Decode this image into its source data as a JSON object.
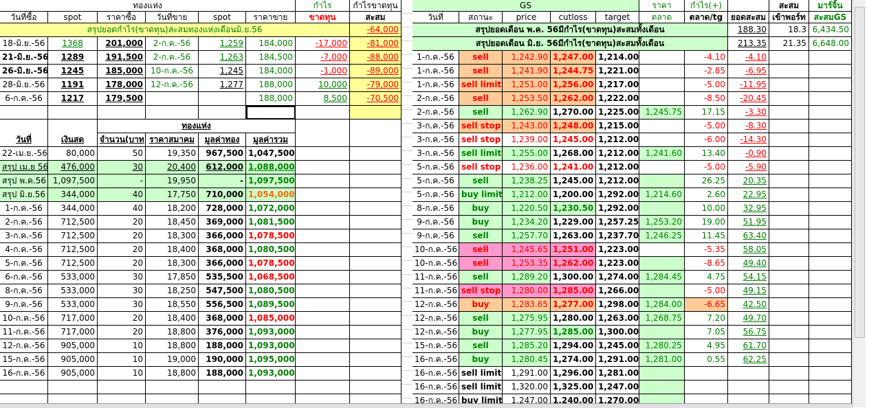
{
  "colors": {
    "green": "#008000",
    "red": "#ff0000",
    "yellow": "#ffff99",
    "lightgreen": "#ccffcc",
    "orange": "#ffcc99",
    "pink": "#ff99cc"
  },
  "left_top": {
    "group_header": "ทองแห่ง",
    "profit_header_top": "กำไร",
    "profit_header_bottom": "ขาดทุน",
    "cum_header_top": "กำไรขาดทุน",
    "cum_header_bottom": "สะสม",
    "columns": [
      "วันที่ซื้อ",
      "spot",
      "ราคาซื้อ",
      "วันที่ขาย",
      "spot",
      "ราคาขาย"
    ],
    "summary_label": "สรุปยอดกำไร(ขาดทุน)สะสมทองแห่งเดือนมิ.ย.56",
    "summary_value": "-64,000",
    "rows": [
      [
        "18-มิ.ย.-56",
        "1368",
        "201,000",
        "2-ก.ค.-56",
        "1,259",
        "184,000",
        "-17,000",
        "-81,000"
      ],
      [
        "21-มิ.ย.-56",
        "1289",
        "191,500",
        "2-ก.ค.-56",
        "1,263",
        "184,500",
        "-7,000",
        "-88,000"
      ],
      [
        "26-มิ.ย.-56",
        "1245",
        "185,000",
        "10-ก.ค.-56",
        "1,245",
        "184,000",
        "-1,000",
        "-89,000"
      ],
      [
        "28-มิ.ย.-56",
        "1191",
        "178,000",
        "12-ก.ค.-56",
        "1,277",
        "188,000",
        "10,000",
        "-79,000"
      ],
      [
        "6-ก.ค.-56",
        "1217",
        "179,500",
        "",
        "",
        "188,000",
        "8,500",
        "-70,500"
      ]
    ]
  },
  "left_bottom": {
    "group_header": "ทองแห่ง",
    "columns": [
      "วันที่",
      "เงินสด",
      "จำนวน(บาท)",
      "ราคาสมาคม",
      "มูลค่าทอง",
      "มูลค่ารวม"
    ],
    "rows": [
      {
        "v": [
          "22-เม.ย.-56",
          "80,000",
          "50",
          "19,350",
          "967,500",
          "1,047,500"
        ],
        "tc": ""
      },
      {
        "v": [
          "สรุป เม.ย 56",
          "476,000",
          "30",
          "20,400",
          "612,000",
          "1,088,000"
        ],
        "tc": "g",
        "sum": true,
        "u": true
      },
      {
        "v": [
          "สรุป พ.ค.56",
          "1,097,500",
          "-",
          "19,950",
          "-",
          "1,097,500"
        ],
        "tc": "g",
        "sum": true
      },
      {
        "v": [
          "สรุป มิ.ย.56",
          "344,000",
          "40",
          "17,750",
          "710,000",
          "1,054,000"
        ],
        "tc": "or",
        "sum": true
      },
      {
        "v": [
          "1-ก.ค.-56",
          "344,000",
          "40",
          "18,200",
          "728,000",
          "1,072,000"
        ],
        "tc": "g"
      },
      {
        "v": [
          "2-ก.ค.-56",
          "712,500",
          "20",
          "18,450",
          "369,000",
          "1,081,500"
        ],
        "tc": "g"
      },
      {
        "v": [
          "3-ก.ค.-56",
          "712,500",
          "20",
          "18,300",
          "366,000",
          "1,078,500"
        ],
        "tc": "rd"
      },
      {
        "v": [
          "4-ก.ค.-56",
          "712,500",
          "20",
          "18,400",
          "368,000",
          "1,080,500"
        ],
        "tc": "g"
      },
      {
        "v": [
          "5-ก.ค.-56",
          "712,500",
          "20",
          "18,300",
          "366,000",
          "1,078,500"
        ],
        "tc": "rd"
      },
      {
        "v": [
          "6-ก.ค.-56",
          "533,000",
          "30",
          "17,850",
          "535,500",
          "1,068,500"
        ],
        "tc": "rd"
      },
      {
        "v": [
          "8-ก.ค.-56",
          "533,000",
          "30",
          "18,250",
          "547,500",
          "1,080,500"
        ],
        "tc": "g"
      },
      {
        "v": [
          "9-ก.ค.-56",
          "533,000",
          "30",
          "18,550",
          "556,500",
          "1,089,500"
        ],
        "tc": "g"
      },
      {
        "v": [
          "10-ก.ค.-56",
          "717,000",
          "20",
          "18,400",
          "368,000",
          "1,085,000"
        ],
        "tc": "rd"
      },
      {
        "v": [
          "11-ก.ค.-56",
          "717,000",
          "20",
          "18,800",
          "376,000",
          "1,093,000"
        ],
        "tc": "g"
      },
      {
        "v": [
          "12-ก.ค.-56",
          "905,000",
          "10",
          "18,800",
          "188,000",
          "1,093,000"
        ],
        "tc": "g"
      },
      {
        "v": [
          "15-ก.ค.-56",
          "905,000",
          "10",
          "19,000",
          "190,000",
          "1,095,000"
        ],
        "tc": "g"
      },
      {
        "v": [
          "16-ก.ค.-56",
          "905,000",
          "10",
          "18,800",
          "188,000",
          "1,093,000"
        ],
        "tc": "g"
      }
    ]
  },
  "gs": {
    "group_header": "GS",
    "market_header_top": "ราคา",
    "market_header_bottom": "ตลาด",
    "profit_header_top": "กำไร(+)",
    "profit_header_bottom": "ตลาด/tg",
    "cum_header": "ยอดสะสม",
    "port_header_top": "สะสม",
    "port_header_bottom": "เข้าพอร์ท",
    "margin_header_top": "มาร์จิ้น",
    "margin_header_bottom": "สะสมGS",
    "columns": [
      "วันที่",
      "สถานะ",
      "price",
      "cutloss",
      "target"
    ],
    "summaries": [
      {
        "label": "สรุปยอดเดือน พ.ค. 56มีกำไร(ขาดทุน)สะสมทั้งเดือน",
        "total": "188.30",
        "port": "18.3",
        "margin": "6,434.50"
      },
      {
        "label": "สรุปยอดเดือน มิ.ย. 56มีกำไร(ขาดทุน)สะสมทั้งเดือน",
        "total": "213.35",
        "port": "21.35",
        "margin": "6,648.00"
      }
    ],
    "rows": [
      {
        "v": [
          "1-ก.ค.-56",
          "sell",
          "1,242.90",
          "1,247.00",
          "1,214.00",
          "",
          "-4.10",
          "-4.10"
        ],
        "k": "o"
      },
      {
        "v": [
          "1-ก.ค.-56",
          "sell",
          "1,241.90",
          "1,244.75",
          "1,221.00",
          "",
          "-2.85",
          "-6.95"
        ],
        "k": "o"
      },
      {
        "v": [
          "1-ก.ค.-56",
          "sell limit",
          "1,251.00",
          "1,256.00",
          "1,217.00",
          "",
          "-5.00",
          "-11.95"
        ],
        "k": "o"
      },
      {
        "v": [
          "2-ก.ค.-56",
          "sell",
          "1,253.50",
          "1,262.00",
          "1,222.00",
          "",
          "-8.50",
          "-20.45"
        ],
        "k": "o"
      },
      {
        "v": [
          "2-ก.ค.-56",
          "sell",
          "1,262.90",
          "1,270.00",
          "1,225.00",
          "1,245.75",
          "17.15",
          "-3.30"
        ],
        "k": "g",
        "mg": true
      },
      {
        "v": [
          "3-ก.ค.-56",
          "sell stop",
          "1,243.00",
          "1,248.00",
          "1,215.00",
          "",
          "-5.00",
          "-8.30"
        ],
        "k": "o"
      },
      {
        "v": [
          "3-ก.ค.-56",
          "sell stop",
          "1,239.00",
          "1,245.00",
          "1,212.00",
          "",
          "-6.00",
          "-14.30"
        ],
        "k": "r"
      },
      {
        "v": [
          "3-ก.ค.-56",
          "sell limit",
          "1,255.00",
          "1,268.00",
          "1,212.00",
          "1,241.60",
          "13.40",
          "-0.90"
        ],
        "k": "g",
        "mg": true
      },
      {
        "v": [
          "5-ก.ค.-56",
          "sell stop",
          "1,236.00",
          "1,241.00",
          "1,212.00",
          "",
          "-5.00",
          "-5.90"
        ],
        "k": "r"
      },
      {
        "v": [
          "5-ก.ค.-56",
          "sell",
          "1,238.25",
          "1,245.00",
          "1,212.00",
          "",
          "26.25",
          "20.35"
        ],
        "k": "g",
        "mg": true
      },
      {
        "v": [
          "5-ก.ค.-56",
          "buy limit",
          "1,212.00",
          "1,200.00",
          "1,292.00",
          "1,214.60",
          "2.60",
          "22.95"
        ],
        "k": "g",
        "mg": true
      },
      {
        "v": [
          "8-ก.ค.-56",
          "buy",
          "1,220.50",
          "1,230.50",
          "1,292.00",
          "",
          "10.00",
          "32.95"
        ],
        "k": "g",
        "cg": true,
        "mg": true
      },
      {
        "v": [
          "9-ก.ค.-56",
          "buy",
          "1,234.20",
          "1,229.00",
          "1,257.25",
          "1,253.20",
          "19.00",
          "51.95"
        ],
        "k": "g",
        "mg": true
      },
      {
        "v": [
          "9-ก.ค.-56",
          "sell",
          "1,257.70",
          "1,263.00",
          "1,237.70",
          "1,246.25",
          "11.45",
          "63.40"
        ],
        "k": "g",
        "mg": true
      },
      {
        "v": [
          "10-ก.ค.-56",
          "sell",
          "1,245.65",
          "1,251.00",
          "1,223.00",
          "",
          "-5.35",
          "58.05"
        ],
        "k": "p"
      },
      {
        "v": [
          "10-ก.ค.-56",
          "sell",
          "1,253.35",
          "1,262.00",
          "1,223.00",
          "",
          "-8.65",
          "49.40"
        ],
        "k": "p",
        "mg": true
      },
      {
        "v": [
          "11-ก.ค.-56",
          "sell",
          "1,289.20",
          "1,300.00",
          "1,274.00",
          "1,284.45",
          "4.75",
          "54.15"
        ],
        "k": "g",
        "mg": true
      },
      {
        "v": [
          "11-ก.ค.-56",
          "sell stop",
          "1,280.00",
          "1,285.00",
          "1,266.00",
          "",
          "-5.00",
          "49.15"
        ],
        "k": "p",
        "mg": true
      },
      {
        "v": [
          "12-ก.ค.-56",
          "buy",
          "1,283.65",
          "1,277.00",
          "1,298.00",
          "1,284.00",
          "-6.65",
          "42.50"
        ],
        "k": "o",
        "mg": true,
        "po": true
      },
      {
        "v": [
          "12-ก.ค.-56",
          "sell",
          "1,275.95",
          "1,280.00",
          "1,263.00",
          "1,268.75",
          "7.20",
          "49.70"
        ],
        "k": "g",
        "mg": true
      },
      {
        "v": [
          "12-ก.ค.-56",
          "buy",
          "1,277.95",
          "1,285.00",
          "1,300.00",
          "",
          "7.05",
          "56.75"
        ],
        "k": "g",
        "cg": true,
        "mg": true
      },
      {
        "v": [
          "15-ก.ค.-56",
          "sell",
          "1,285.20",
          "1,294.00",
          "1,245.00",
          "1,280.25",
          "4.95",
          "61.70"
        ],
        "k": "g",
        "mg": true
      },
      {
        "v": [
          "16-ก.ค.-56",
          "buy",
          "1,280.45",
          "1,274.00",
          "1,291.00",
          "1,281.00",
          "0.55",
          "62.25"
        ],
        "k": "g",
        "mg": true
      },
      {
        "v": [
          "16-ก.ค.-56",
          "sell limit",
          "1,291.00",
          "1,296.00",
          "1,281.00",
          "",
          "",
          ""
        ],
        "k": "n",
        "mg": true
      },
      {
        "v": [
          "16-ก.ค.-56",
          "sell limit",
          "1,320.00",
          "1,325.00",
          "1,247.00",
          "",
          "",
          ""
        ],
        "k": "n",
        "mg": true
      },
      {
        "v": [
          "16-ก.ค.-56",
          "buy limit",
          "1,247.00",
          "1,240.00",
          "1,270.00",
          "",
          "",
          ""
        ],
        "k": "n",
        "mg": true
      }
    ]
  }
}
